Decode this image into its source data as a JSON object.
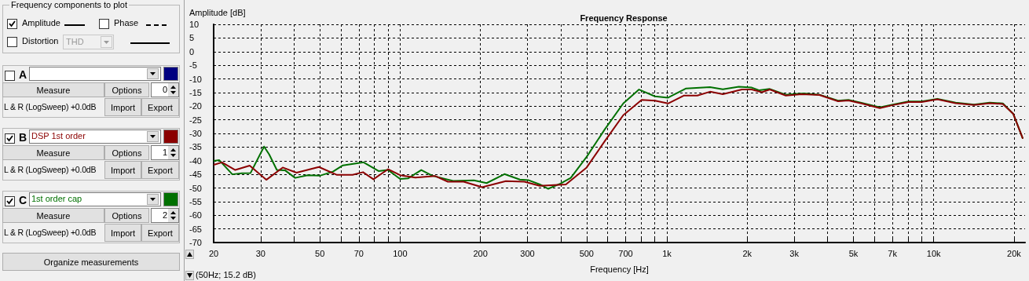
{
  "chart_data": {
    "type": "line",
    "title": "Frequency Response",
    "xlabel": "Frequency [Hz]",
    "ylabel": "Amplitude [dB]",
    "log": "x",
    "grid": true,
    "legend": "left",
    "marker": "none",
    "line_style": "solid",
    "xlim": [
      20,
      22000
    ],
    "ylim": [
      -70,
      10
    ],
    "xticks": [
      20,
      30,
      {
        "value": 40,
        "label": null
      },
      50,
      {
        "value": 60,
        "label": null
      },
      70,
      {
        "value": 80,
        "label": null
      },
      {
        "value": 90,
        "label": null
      },
      100,
      200,
      300,
      {
        "value": 400,
        "label": null
      },
      500,
      {
        "value": 600,
        "label": null
      },
      700,
      {
        "value": 800,
        "label": null
      },
      {
        "value": 900,
        "label": null
      },
      {
        "value": 1000,
        "label": "1k"
      },
      {
        "value": 2000,
        "label": "2k"
      },
      {
        "value": 3000,
        "label": "3k"
      },
      {
        "value": 4000,
        "label": null
      },
      {
        "value": 5000,
        "label": "5k"
      },
      {
        "value": 6000,
        "label": null
      },
      {
        "value": 7000,
        "label": "7k"
      },
      {
        "value": 8000,
        "label": null
      },
      {
        "value": 9000,
        "label": null
      },
      {
        "value": 10000,
        "label": "10k"
      },
      {
        "value": 20000,
        "label": "20k"
      }
    ],
    "yticks": [
      10,
      5,
      0,
      -5,
      -10,
      -15,
      -20,
      -25,
      -30,
      -35,
      -40,
      -45,
      -50,
      -55,
      -60,
      -65,
      -70
    ],
    "series": [
      {
        "name": "DSP 1st order",
        "color": "#8b0000",
        "x": [
          20,
          21.5,
          24.1,
          27.3,
          31.5,
          36.3,
          40.9,
          49.6,
          58,
          66.3,
          72.6,
          79.4,
          90.2,
          100,
          114,
          135,
          151,
          173,
          203,
          249,
          292,
          334,
          418,
          500,
          584,
          686,
          804,
          902,
          1010,
          1160,
          1300,
          1450,
          1620,
          1910,
          2080,
          2270,
          2430,
          2790,
          3200,
          3730,
          4380,
          4790,
          5360,
          6280,
          7030,
          8050,
          9010,
          10320,
          12080,
          14160,
          16220,
          18160,
          19860,
          21580
        ],
        "values": [
          -41.5,
          -40.6,
          -43.4,
          -41.8,
          -47,
          -42.5,
          -44.4,
          -42.3,
          -45.2,
          -45.2,
          -44.2,
          -46.8,
          -43.1,
          -45.3,
          -46.2,
          -45.6,
          -47.7,
          -47.7,
          -49.7,
          -47.5,
          -47.7,
          -49.2,
          -48.7,
          -42.5,
          -32.9,
          -23.3,
          -17.7,
          -18,
          -19,
          -16.1,
          -16.1,
          -14.7,
          -15.6,
          -13.9,
          -13.9,
          -14.9,
          -13.9,
          -16.1,
          -15.6,
          -15.9,
          -18.2,
          -17.9,
          -19,
          -20.7,
          -19.6,
          -18.5,
          -18.5,
          -17.5,
          -18.9,
          -19.6,
          -18.9,
          -19.2,
          -22.8,
          -31.9
        ]
      },
      {
        "name": "1st order cap",
        "color": "#007000",
        "x": [
          20,
          21,
          23.5,
          25.5,
          27.5,
          30.9,
          32.3,
          34.5,
          37,
          40.4,
          45,
          50,
          56,
          61,
          73,
          83,
          90,
          100,
          107,
          120,
          132,
          158,
          189,
          211,
          246,
          281,
          302,
          334,
          359,
          399,
          436,
          500,
          584,
          686,
          786,
          902,
          1010,
          1180,
          1450,
          1620,
          1860,
          2080,
          2220,
          2430,
          2790,
          3260,
          3730,
          4380,
          4790,
          5360,
          6280,
          7030,
          8050,
          9010,
          10320,
          12080,
          14160,
          16220,
          18160,
          19860,
          21580
        ],
        "values": [
          -40.1,
          -39.8,
          -45,
          -44.6,
          -44.5,
          -34.8,
          -37.7,
          -43.4,
          -43.5,
          -46.3,
          -45.3,
          -45.5,
          -44,
          -41.7,
          -40.6,
          -43.8,
          -43.4,
          -46.7,
          -46.5,
          -43.4,
          -45.5,
          -47.4,
          -47.2,
          -48.2,
          -44.9,
          -46.9,
          -47.1,
          -48.7,
          -50.3,
          -48.4,
          -46.3,
          -38.6,
          -28.6,
          -19,
          -13.9,
          -16.4,
          -16.9,
          -13.5,
          -13,
          -13.8,
          -12.9,
          -13.2,
          -14.2,
          -13.7,
          -15.8,
          -15.3,
          -15.8,
          -18,
          -17.7,
          -18.8,
          -20.4,
          -19.4,
          -18.3,
          -18.3,
          -17.3,
          -18.7,
          -19.4,
          -18.7,
          -19,
          -22.8,
          -31.9
        ]
      }
    ],
    "annotations": [
      "Frequency components to plot",
      "Amplitude",
      "Phase",
      "Distortion",
      "THD",
      "A",
      "Measure",
      "Options",
      "0",
      "L & R (LogSweep) +0.0dB",
      "Import",
      "Export",
      "B",
      "Measure",
      "Options",
      "1",
      "L & R (LogSweep) +0.0dB",
      "Import",
      "Export",
      "C",
      "Measure",
      "Options",
      "2",
      "L & R (LogSweep) +0.0dB",
      "Import",
      "Export",
      "Organize measurements",
      "(50Hz; 15.2 dB)"
    ]
  }
}
